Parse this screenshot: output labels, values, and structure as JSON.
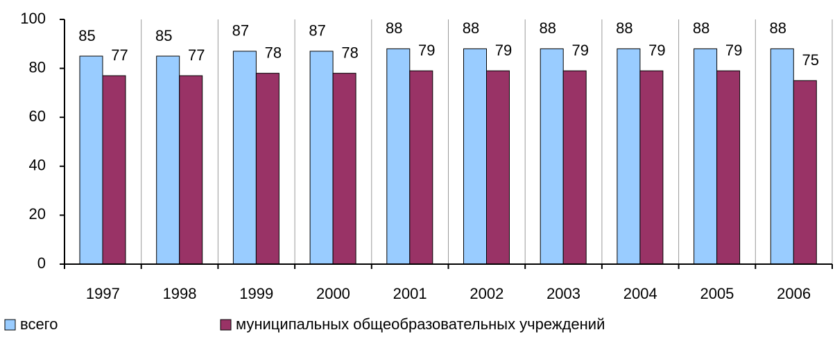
{
  "chart_data": {
    "type": "bar",
    "categories": [
      "1997",
      "1998",
      "1999",
      "2000",
      "2001",
      "2002",
      "2003",
      "2004",
      "2005",
      "2006"
    ],
    "series": [
      {
        "name": "всего",
        "color": "#99ccff",
        "values": [
          85,
          85,
          87,
          87,
          88,
          88,
          88,
          88,
          88,
          88
        ]
      },
      {
        "name": "муниципальных общеобразовательных учреждений",
        "color": "#993366",
        "values": [
          77,
          77,
          78,
          78,
          79,
          79,
          79,
          79,
          79,
          75
        ]
      }
    ],
    "ylim": [
      0,
      100
    ],
    "yticks": [
      0,
      20,
      40,
      60,
      80,
      100
    ],
    "category_grid": true,
    "legend": "bottom"
  }
}
